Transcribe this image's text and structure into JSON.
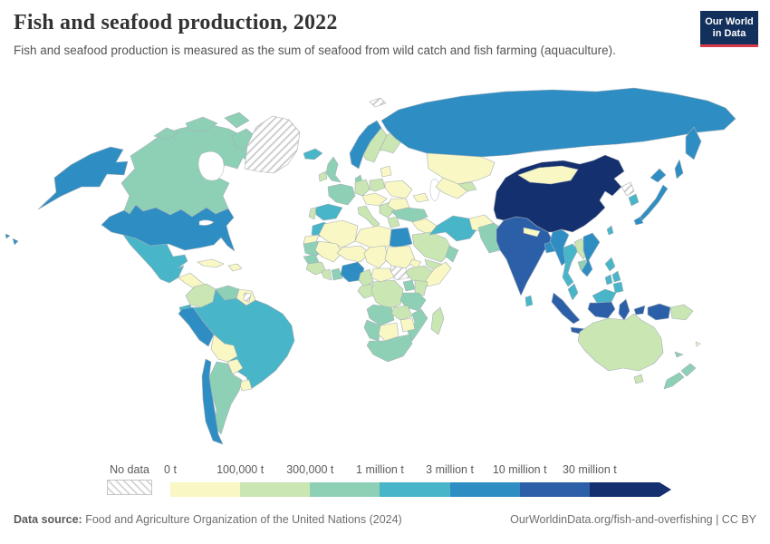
{
  "header": {
    "title": "Fish and seafood production, 2022",
    "subtitle": "Fish and seafood production is measured as the sum of seafood from wild catch and fish farming (aquaculture).",
    "logo_line1": "Our World",
    "logo_line2": "in Data"
  },
  "legend": {
    "no_data_label": "No data",
    "ticks": [
      "0 t",
      "100,000 t",
      "300,000 t",
      "1 million t",
      "3 million t",
      "10 million t",
      "30 million t"
    ]
  },
  "footer": {
    "source_label": "Data source:",
    "source_text": " Food and Agriculture Organization of the United Nations (2024)",
    "right_text": "OurWorldinData.org/fish-and-overfishing | CC BY"
  },
  "colors": {
    "bins": [
      "#f9f7c3",
      "#c9e6b3",
      "#8ed0b6",
      "#48b5c8",
      "#2e8ec3",
      "#2b5fa8",
      "#15306f"
    ],
    "no_data_fill": "url(#hatch)",
    "border": "#a7afb5",
    "logo_bg": "#12305b",
    "logo_accent": "#d93a4a"
  },
  "chart_data": {
    "type": "choropleth-map",
    "title": "Fish and seafood production, 2022",
    "unit": "tonnes",
    "bin_labels": [
      "0 t",
      "100,000 t",
      "300,000 t",
      "1 million t",
      "3 million t",
      "10 million t",
      "30 million t"
    ],
    "bin_meaning": "index 0 = 0-100,000 t; 1 = 100,000-300,000 t; 2 = 300,000-1 million t; 3 = 1-3 million t; 4 = 3-10 million t; 5 = 10-30 million t; 6 = over 30 million t",
    "countries": {
      "united-states": 4,
      "canada": 2,
      "greenland": "no-data",
      "mexico": 3,
      "central-america": 0,
      "panama": 2,
      "cuba": 0,
      "hispaniola": 0,
      "colombia": 1,
      "venezuela": 2,
      "guyana": 0,
      "suriname": "no-data",
      "ecuador": 3,
      "peru": 4,
      "brazil": 3,
      "bolivia": 0,
      "paraguay": 0,
      "uruguay": 0,
      "argentina": 2,
      "chile": 4,
      "iceland": 3,
      "norway": 4,
      "sweden": 1,
      "finland": 1,
      "denmark": 2,
      "united-kingdom": 2,
      "ireland": 1,
      "france": 2,
      "spain": 3,
      "portugal": 1,
      "germany": 1,
      "poland": 1,
      "baltics": 0,
      "belarus-ukraine": 0,
      "central-europe": 0,
      "italy": 1,
      "balkans": 1,
      "greece": 1,
      "romania-bulgaria": 0,
      "russia": 4,
      "kazakhstan": 0,
      "turkmenistan": 0,
      "uzbekistan": 1,
      "caucasus": 0,
      "turkey": 2,
      "iraq-syria": 0,
      "saudi-arabia": 1,
      "yemen": 1,
      "oman": 2,
      "iran": 3,
      "afghanistan": 0,
      "pakistan": 2,
      "india": 5,
      "nepal": 0,
      "bangladesh": 4,
      "sri-lanka": 3,
      "china": 6,
      "mongolia": 0,
      "north-korea": "no-data",
      "south-korea": 3,
      "japan": 4,
      "taiwan": 3,
      "myanmar": 4,
      "thailand": 3,
      "laos": 1,
      "cambodia": 2,
      "vietnam": 4,
      "malaysia": 3,
      "indonesia": 5,
      "philippines": 3,
      "papua-new-guinea": 1,
      "svalbard": "no-data",
      "morocco": 3,
      "western-sahara": 0,
      "algeria": 0,
      "libya": 0,
      "egypt": 4,
      "mauritania": 2,
      "mali": 0,
      "niger": 0,
      "chad": 0,
      "sudan": 0,
      "south-sudan": "no-data",
      "eritrea": 0,
      "ethiopia": 1,
      "somalia": 0,
      "senegal": 2,
      "guinea": 1,
      "ivory-coast": 1,
      "ghana": 2,
      "nigeria": 4,
      "cameroon": 1,
      "central-african-republic": 0,
      "congo": 1,
      "drc": 1,
      "uganda": 2,
      "kenya": 1,
      "tanzania": 2,
      "angola": 2,
      "zambia": 1,
      "mozambique": 2,
      "zimbabwe": 0,
      "namibia": 2,
      "botswana": 0,
      "south-africa": 2,
      "madagascar": 1,
      "australia": 1,
      "new-zealand": 2,
      "fiji": 0,
      "new-caledonia": 2
    }
  }
}
